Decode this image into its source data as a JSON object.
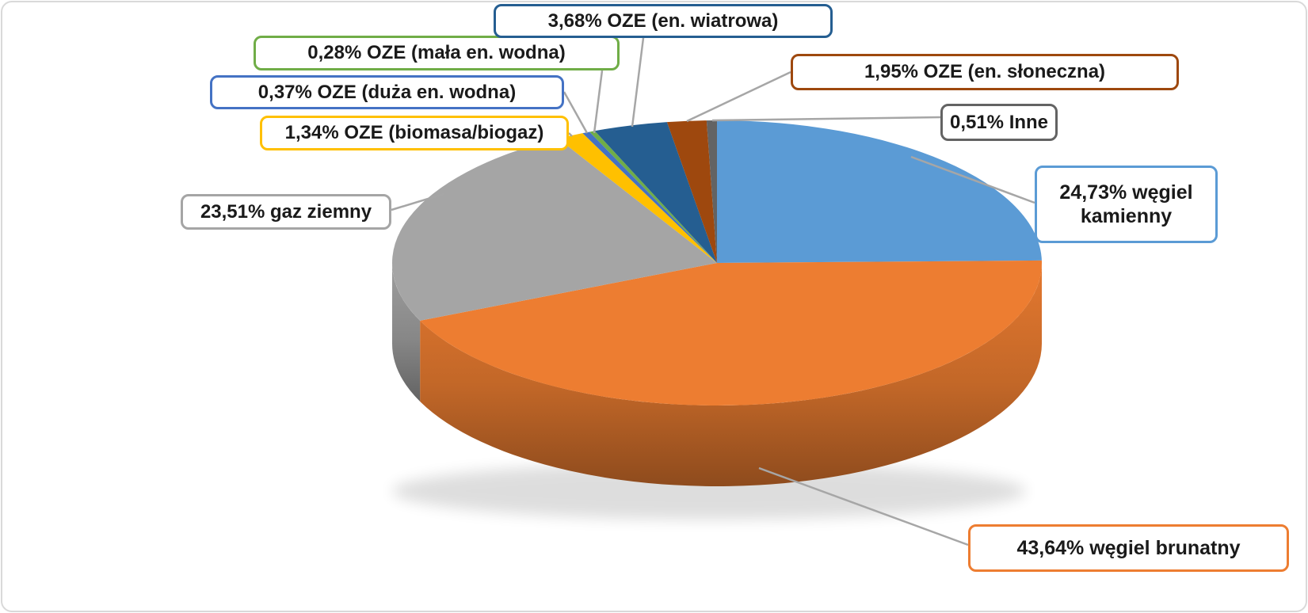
{
  "chart_area": {
    "background": "#FFFFFF",
    "border_color": "#D9D9D9"
  },
  "chart_data": {
    "type": "pie",
    "style": "3d",
    "unit": "%",
    "start_angle_deg": 0,
    "direction": "clockwise",
    "leader_line_color": "#A6A6A6",
    "label_text_color": "#1A1A1A",
    "label_box_fill": "#FFFFFF",
    "slices": [
      {
        "id": "wegiel-kamienny",
        "name": "węgiel kamienny",
        "value": 24.73,
        "label": "24,73% węgiel kamienny",
        "color": "#5B9BD5"
      },
      {
        "id": "wegiel-brunatny",
        "name": "węgiel brunatny",
        "value": 43.64,
        "label": "43,64% węgiel brunatny",
        "color": "#ED7D31"
      },
      {
        "id": "gaz-ziemny",
        "name": "gaz ziemny",
        "value": 23.51,
        "label": "23,51% gaz ziemny",
        "color": "#A5A5A5"
      },
      {
        "id": "oze-biomasa",
        "name": "OZE (biomasa/biogaz)",
        "value": 1.34,
        "label": "1,34% OZE (biomasa/biogaz)",
        "color": "#FFC000"
      },
      {
        "id": "oze-duza-wodna",
        "name": "OZE (duża en. wodna)",
        "value": 0.37,
        "label": "0,37% OZE (duża en. wodna)",
        "color": "#4472C4"
      },
      {
        "id": "oze-mala-wodna",
        "name": "OZE (mała en. wodna)",
        "value": 0.28,
        "label": "0,28% OZE (mała en. wodna)",
        "color": "#70AD47"
      },
      {
        "id": "oze-wiatrowa",
        "name": "OZE (en. wiatrowa)",
        "value": 3.68,
        "label": "3,68% OZE (en. wiatrowa)",
        "color": "#255E91"
      },
      {
        "id": "oze-sloneczna",
        "name": "OZE (en. słoneczna)",
        "value": 1.95,
        "label": "1,95% OZE (en. słoneczna)",
        "color": "#9E480E"
      },
      {
        "id": "inne",
        "name": "Inne",
        "value": 0.51,
        "label": "0,51% Inne",
        "color": "#636363"
      }
    ]
  }
}
